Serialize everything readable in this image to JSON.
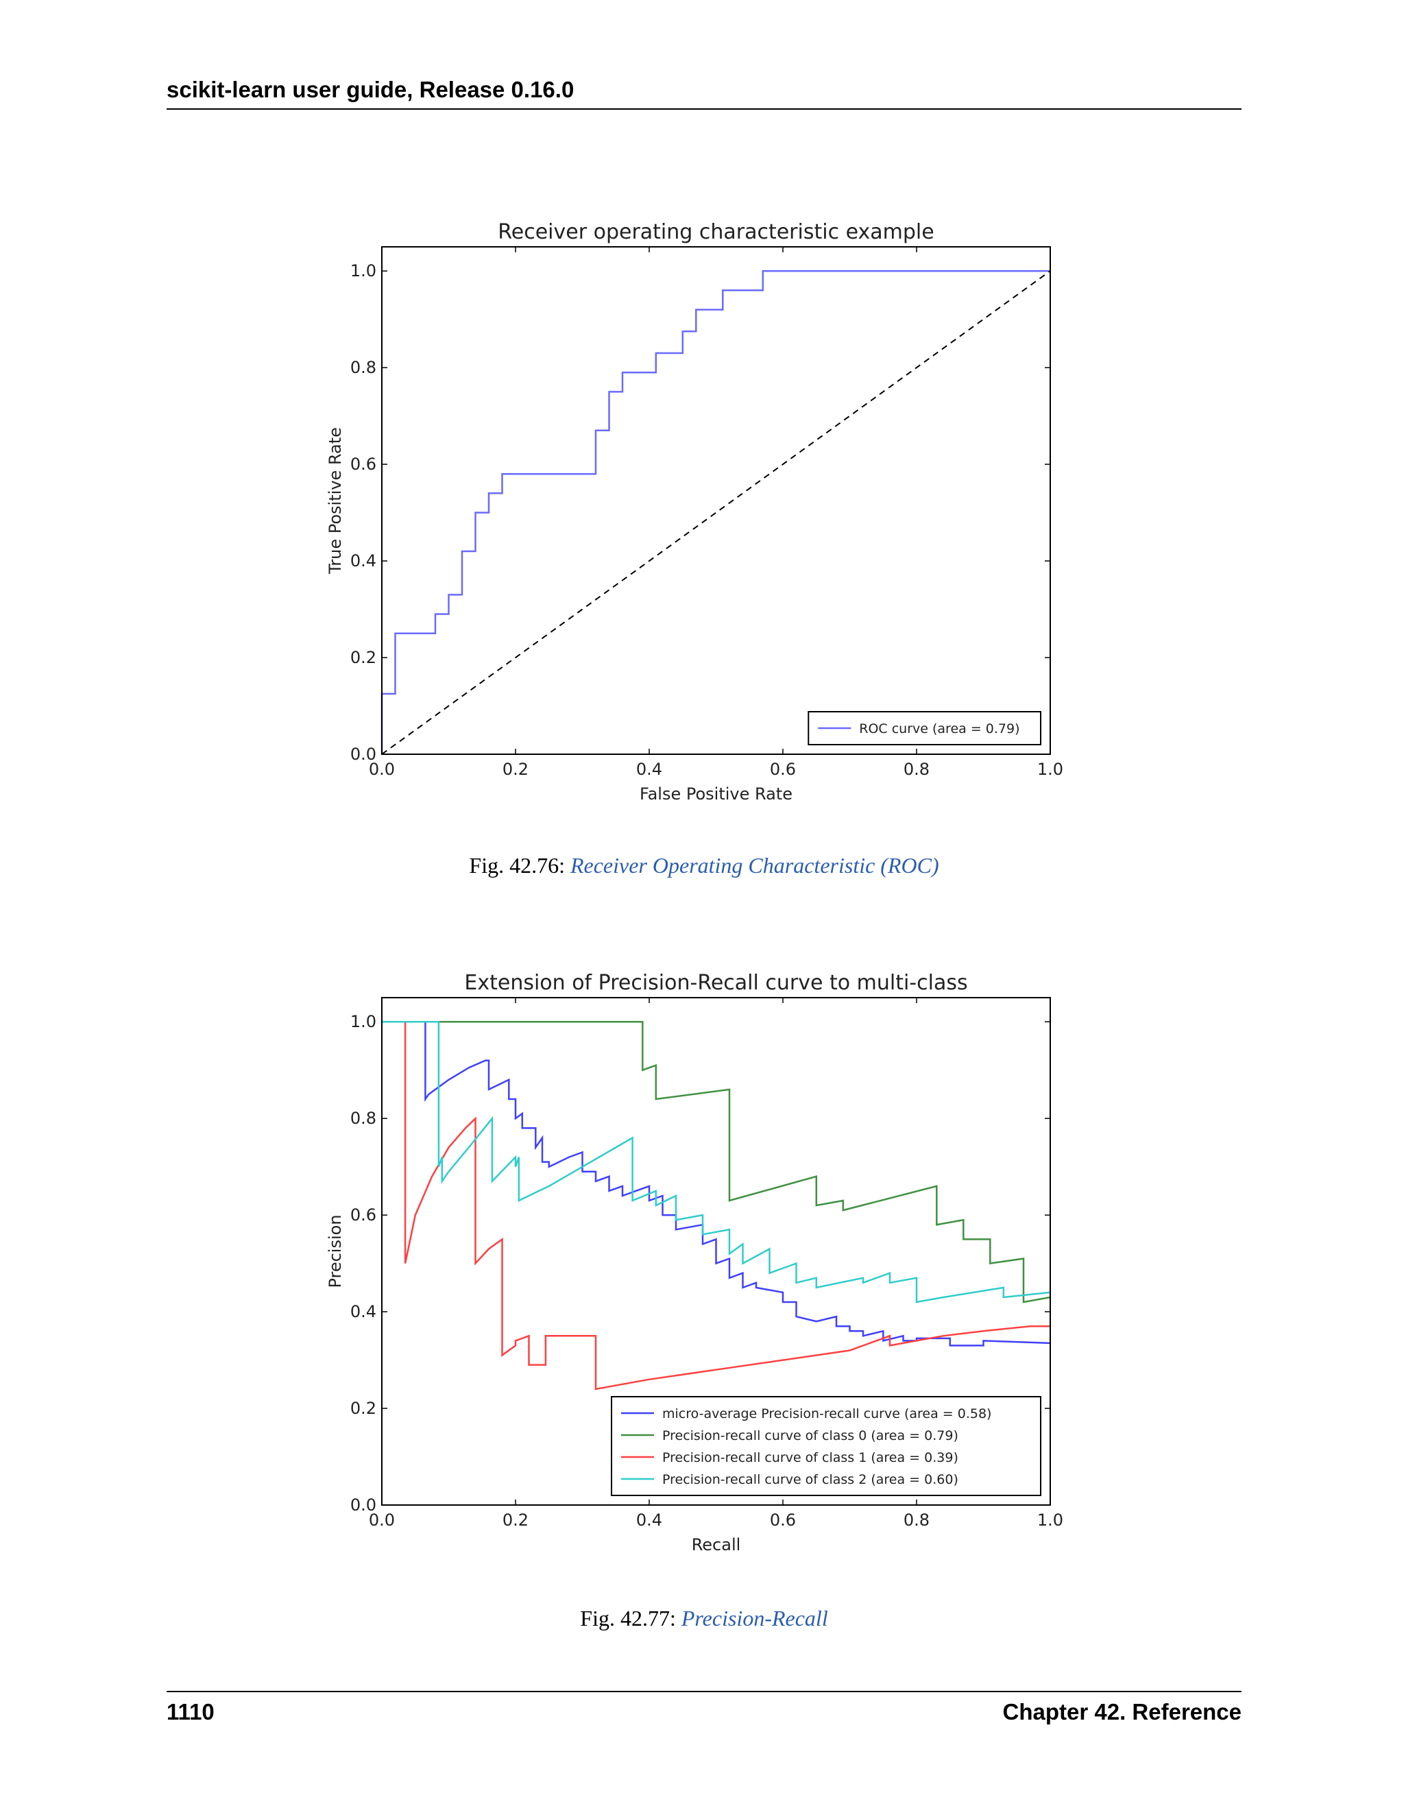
{
  "header": {
    "title": "scikit-learn user guide, Release 0.16.0"
  },
  "footer": {
    "page_number": "1110",
    "chapter": "Chapter 42.  Reference"
  },
  "figures": [
    {
      "label": "Fig.  42.76: ",
      "link_text": "Receiver Operating Characteristic (ROC)"
    },
    {
      "label": "Fig.  42.77: ",
      "link_text": "Precision-Recall"
    }
  ],
  "chart_data": [
    {
      "type": "line",
      "title": "Receiver operating characteristic example",
      "xlabel": "False Positive Rate",
      "ylabel": "True Positive Rate",
      "xlim": [
        0.0,
        1.0
      ],
      "ylim": [
        0.0,
        1.05
      ],
      "xticks": [
        "0.0",
        "0.2",
        "0.4",
        "0.6",
        "0.8",
        "1.0"
      ],
      "yticks": [
        "0.0",
        "0.2",
        "0.4",
        "0.6",
        "0.8",
        "1.0"
      ],
      "legend_position": "lower-right",
      "series": [
        {
          "name": "ROC curve (area = 0.79)",
          "color": "#6a6aff",
          "style": "solid",
          "x": [
            0.0,
            0.0,
            0.02,
            0.02,
            0.08,
            0.08,
            0.1,
            0.1,
            0.12,
            0.12,
            0.14,
            0.14,
            0.16,
            0.16,
            0.18,
            0.18,
            0.32,
            0.32,
            0.34,
            0.34,
            0.36,
            0.36,
            0.41,
            0.41,
            0.45,
            0.45,
            0.47,
            0.47,
            0.51,
            0.51,
            0.57,
            0.57,
            1.0
          ],
          "y": [
            0.0,
            0.125,
            0.125,
            0.25,
            0.25,
            0.29,
            0.29,
            0.33,
            0.33,
            0.42,
            0.42,
            0.5,
            0.5,
            0.54,
            0.54,
            0.58,
            0.58,
            0.67,
            0.67,
            0.75,
            0.75,
            0.79,
            0.79,
            0.83,
            0.83,
            0.875,
            0.875,
            0.92,
            0.92,
            0.96,
            0.96,
            1.0,
            1.0
          ]
        },
        {
          "name": "",
          "color": "#000000",
          "style": "dashed",
          "x": [
            0.0,
            1.0
          ],
          "y": [
            0.0,
            1.0
          ]
        }
      ]
    },
    {
      "type": "line",
      "title": "Extension of Precision-Recall curve to multi-class",
      "xlabel": "Recall",
      "ylabel": "Precision",
      "xlim": [
        0.0,
        1.0
      ],
      "ylim": [
        0.0,
        1.05
      ],
      "xticks": [
        "0.0",
        "0.2",
        "0.4",
        "0.6",
        "0.8",
        "1.0"
      ],
      "yticks": [
        "0.0",
        "0.2",
        "0.4",
        "0.6",
        "0.8",
        "1.0"
      ],
      "legend_position": "lower-right",
      "series": [
        {
          "name": "micro-average Precision-recall curve (area = 0.58)",
          "color": "#4040ff",
          "style": "solid",
          "x": [
            0.0,
            0.065,
            0.065,
            0.07,
            0.1,
            0.13,
            0.155,
            0.16,
            0.16,
            0.19,
            0.19,
            0.2,
            0.2,
            0.21,
            0.21,
            0.23,
            0.23,
            0.24,
            0.24,
            0.25,
            0.25,
            0.28,
            0.3,
            0.3,
            0.32,
            0.32,
            0.34,
            0.34,
            0.36,
            0.36,
            0.38,
            0.4,
            0.4,
            0.42,
            0.42,
            0.44,
            0.44,
            0.48,
            0.48,
            0.5,
            0.5,
            0.52,
            0.52,
            0.54,
            0.54,
            0.56,
            0.56,
            0.6,
            0.6,
            0.62,
            0.62,
            0.65,
            0.68,
            0.68,
            0.7,
            0.7,
            0.72,
            0.72,
            0.75,
            0.75,
            0.78,
            0.78,
            0.8,
            0.8,
            0.85,
            0.85,
            0.9,
            0.9,
            1.0
          ],
          "y": [
            1.0,
            1.0,
            0.84,
            0.85,
            0.88,
            0.905,
            0.92,
            0.92,
            0.86,
            0.88,
            0.84,
            0.84,
            0.8,
            0.81,
            0.78,
            0.78,
            0.74,
            0.76,
            0.71,
            0.71,
            0.7,
            0.72,
            0.73,
            0.69,
            0.69,
            0.67,
            0.68,
            0.65,
            0.66,
            0.64,
            0.65,
            0.66,
            0.63,
            0.64,
            0.6,
            0.6,
            0.57,
            0.58,
            0.54,
            0.55,
            0.5,
            0.51,
            0.47,
            0.48,
            0.45,
            0.46,
            0.45,
            0.44,
            0.42,
            0.42,
            0.39,
            0.38,
            0.39,
            0.37,
            0.37,
            0.36,
            0.36,
            0.35,
            0.36,
            0.34,
            0.35,
            0.34,
            0.34,
            0.345,
            0.345,
            0.33,
            0.33,
            0.34,
            0.335
          ]
        },
        {
          "name": "Precision-recall curve of class 0 (area = 0.79)",
          "color": "#409040",
          "style": "solid",
          "x": [
            0.0,
            0.39,
            0.39,
            0.41,
            0.41,
            0.52,
            0.52,
            0.65,
            0.65,
            0.69,
            0.69,
            0.83,
            0.83,
            0.87,
            0.87,
            0.91,
            0.91,
            0.96,
            0.96,
            1.0
          ],
          "y": [
            1.0,
            1.0,
            0.9,
            0.91,
            0.84,
            0.86,
            0.63,
            0.68,
            0.62,
            0.63,
            0.61,
            0.66,
            0.58,
            0.59,
            0.55,
            0.55,
            0.5,
            0.51,
            0.42,
            0.43
          ]
        },
        {
          "name": "Precision-recall curve of class 1 (area = 0.39)",
          "color": "#ff4040",
          "style": "solid",
          "x": [
            0.0,
            0.035,
            0.035,
            0.05,
            0.075,
            0.1,
            0.125,
            0.14,
            0.14,
            0.16,
            0.18,
            0.18,
            0.2,
            0.2,
            0.22,
            0.22,
            0.245,
            0.245,
            0.32,
            0.32,
            0.4,
            0.5,
            0.6,
            0.7,
            0.76,
            0.76,
            0.84,
            0.9,
            0.97,
            1.0
          ],
          "y": [
            1.0,
            1.0,
            0.5,
            0.6,
            0.68,
            0.74,
            0.78,
            0.8,
            0.5,
            0.53,
            0.55,
            0.31,
            0.33,
            0.34,
            0.35,
            0.29,
            0.29,
            0.35,
            0.35,
            0.24,
            0.26,
            0.28,
            0.3,
            0.32,
            0.35,
            0.33,
            0.35,
            0.36,
            0.37,
            0.37
          ]
        },
        {
          "name": "Precision-recall curve of class 2 (area = 0.60)",
          "color": "#30cccc",
          "style": "solid",
          "x": [
            0.0,
            0.085,
            0.085,
            0.09,
            0.09,
            0.1,
            0.13,
            0.165,
            0.165,
            0.2,
            0.2,
            0.205,
            0.205,
            0.25,
            0.3,
            0.35,
            0.375,
            0.375,
            0.41,
            0.41,
            0.44,
            0.44,
            0.48,
            0.48,
            0.52,
            0.52,
            0.54,
            0.54,
            0.58,
            0.58,
            0.62,
            0.62,
            0.65,
            0.65,
            0.72,
            0.72,
            0.76,
            0.76,
            0.8,
            0.8,
            0.84,
            0.93,
            0.93,
            1.0
          ],
          "y": [
            1.0,
            1.0,
            0.7,
            0.72,
            0.67,
            0.69,
            0.74,
            0.8,
            0.67,
            0.72,
            0.7,
            0.72,
            0.63,
            0.66,
            0.7,
            0.74,
            0.76,
            0.63,
            0.65,
            0.62,
            0.64,
            0.59,
            0.6,
            0.56,
            0.57,
            0.52,
            0.54,
            0.5,
            0.53,
            0.48,
            0.5,
            0.46,
            0.47,
            0.45,
            0.47,
            0.46,
            0.48,
            0.46,
            0.47,
            0.42,
            0.43,
            0.45,
            0.43,
            0.44
          ]
        }
      ]
    }
  ]
}
